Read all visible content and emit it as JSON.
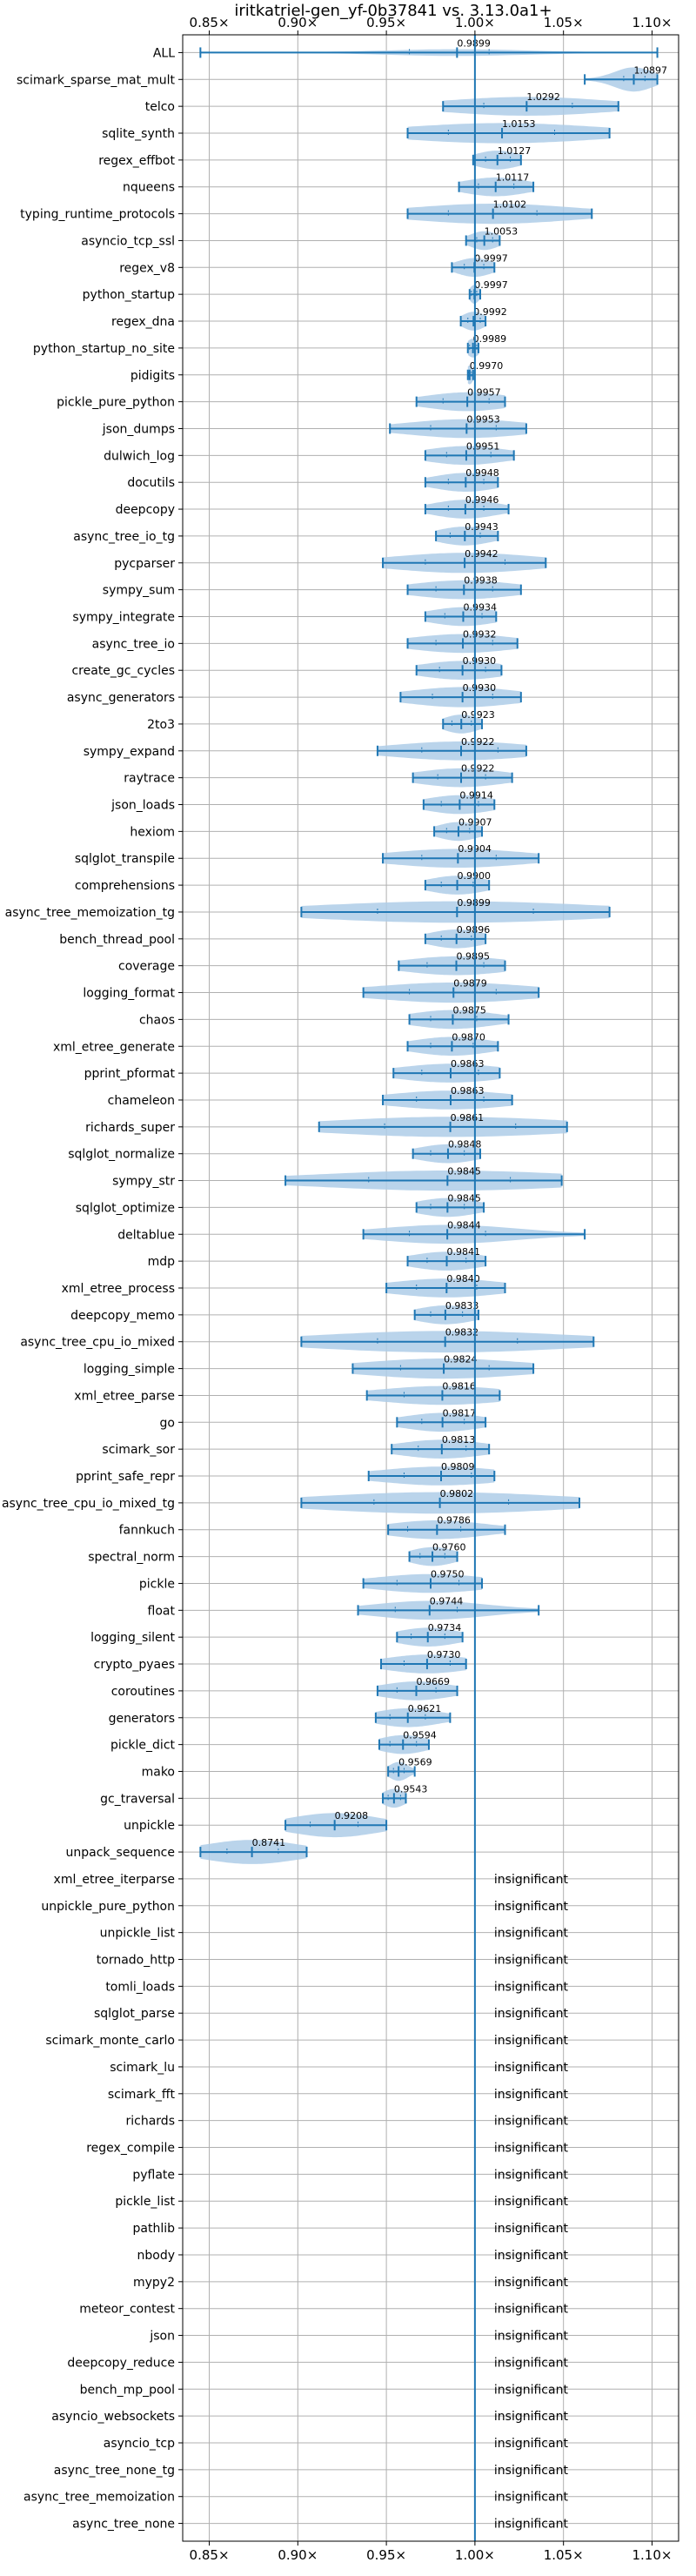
{
  "chart_data": {
    "type": "violin",
    "title": "iritkatriel-gen_yf-0b37841 vs. 3.13.0a1+",
    "xlim": [
      0.835,
      1.115
    ],
    "x_ticks": [
      0.85,
      0.9,
      0.95,
      1.0,
      1.05,
      1.1
    ],
    "x_tick_labels": [
      "0.85×",
      "0.90×",
      "0.95×",
      "1.00×",
      "1.05×",
      "1.10×"
    ],
    "reference_x": 1.0,
    "grid": true,
    "colors": {
      "violin": "#aecde8",
      "line": "#1f77b4",
      "grid": "#b0b0b0"
    },
    "insignificant_text": "insignificant",
    "benchmarks": [
      {
        "name": "ALL",
        "value": 0.9899,
        "label": "0.9899",
        "min": 0.845,
        "max": 1.103,
        "q1": 0.963,
        "q3": 1.008,
        "width": 0.25
      },
      {
        "name": "scimark_sparse_mat_mult",
        "value": 1.0897,
        "label": "1.0897",
        "min": 1.062,
        "max": 1.103,
        "q1": 1.084,
        "q3": 1.096,
        "width": 0.9
      },
      {
        "name": "telco",
        "value": 1.0292,
        "label": "1.0292",
        "min": 0.982,
        "max": 1.081,
        "q1": 1.005,
        "q3": 1.055,
        "width": 0.7
      },
      {
        "name": "sqlite_synth",
        "value": 1.0153,
        "label": "1.0153",
        "min": 0.962,
        "max": 1.076,
        "q1": 0.985,
        "q3": 1.045,
        "width": 0.75
      },
      {
        "name": "regex_effbot",
        "value": 1.0127,
        "label": "1.0127",
        "min": 0.999,
        "max": 1.026,
        "q1": 1.006,
        "q3": 1.02,
        "width": 0.7
      },
      {
        "name": "nqueens",
        "value": 1.0117,
        "label": "1.0117",
        "min": 0.991,
        "max": 1.033,
        "q1": 1.002,
        "q3": 1.022,
        "width": 0.7
      },
      {
        "name": "typing_runtime_protocols",
        "value": 1.0102,
        "label": "1.0102",
        "min": 0.962,
        "max": 1.066,
        "q1": 0.985,
        "q3": 1.035,
        "width": 0.75
      },
      {
        "name": "asyncio_tcp_ssl",
        "value": 1.0053,
        "label": "1.0053",
        "min": 0.995,
        "max": 1.014,
        "q1": 1.001,
        "q3": 1.01,
        "width": 0.7
      },
      {
        "name": "regex_v8",
        "value": 0.9997,
        "label": "0.9997",
        "min": 0.987,
        "max": 1.011,
        "q1": 0.994,
        "q3": 1.005,
        "width": 0.7
      },
      {
        "name": "python_startup",
        "value": 0.9997,
        "label": "0.9997",
        "min": 0.997,
        "max": 1.003,
        "q1": 0.998,
        "q3": 1.001,
        "width": 0.7
      },
      {
        "name": "regex_dna",
        "value": 0.9992,
        "label": "0.9992",
        "min": 0.992,
        "max": 1.006,
        "q1": 0.996,
        "q3": 1.003,
        "width": 0.7
      },
      {
        "name": "python_startup_no_site",
        "value": 0.9989,
        "label": "0.9989",
        "min": 0.996,
        "max": 1.002,
        "q1": 0.997,
        "q3": 1.001,
        "width": 0.7
      },
      {
        "name": "pidigits",
        "value": 0.997,
        "label": "0.9970",
        "min": 0.996,
        "max": 0.999,
        "q1": 0.9965,
        "q3": 0.998,
        "width": 0.7
      },
      {
        "name": "pickle_pure_python",
        "value": 0.9957,
        "label": "0.9957",
        "min": 0.967,
        "max": 1.017,
        "q1": 0.982,
        "q3": 1.008,
        "width": 0.7
      },
      {
        "name": "json_dumps",
        "value": 0.9953,
        "label": "0.9953",
        "min": 0.952,
        "max": 1.029,
        "q1": 0.975,
        "q3": 1.012,
        "width": 0.7
      },
      {
        "name": "dulwich_log",
        "value": 0.9951,
        "label": "0.9951",
        "min": 0.972,
        "max": 1.022,
        "q1": 0.984,
        "q3": 1.009,
        "width": 0.7
      },
      {
        "name": "docutils",
        "value": 0.9948,
        "label": "0.9948",
        "min": 0.972,
        "max": 1.013,
        "q1": 0.985,
        "q3": 1.005,
        "width": 0.7
      },
      {
        "name": "deepcopy",
        "value": 0.9946,
        "label": "0.9946",
        "min": 0.972,
        "max": 1.019,
        "q1": 0.985,
        "q3": 1.005,
        "width": 0.7
      },
      {
        "name": "async_tree_io_tg",
        "value": 0.9943,
        "label": "0.9943",
        "min": 0.978,
        "max": 1.013,
        "q1": 0.986,
        "q3": 1.003,
        "width": 0.7
      },
      {
        "name": "pycparser",
        "value": 0.9942,
        "label": "0.9942",
        "min": 0.948,
        "max": 1.04,
        "q1": 0.972,
        "q3": 1.017,
        "width": 0.75
      },
      {
        "name": "sympy_sum",
        "value": 0.9938,
        "label": "0.9938",
        "min": 0.962,
        "max": 1.026,
        "q1": 0.978,
        "q3": 1.01,
        "width": 0.7
      },
      {
        "name": "sympy_integrate",
        "value": 0.9934,
        "label": "0.9934",
        "min": 0.972,
        "max": 1.012,
        "q1": 0.983,
        "q3": 1.004,
        "width": 0.7
      },
      {
        "name": "async_tree_io",
        "value": 0.9932,
        "label": "0.9932",
        "min": 0.962,
        "max": 1.024,
        "q1": 0.978,
        "q3": 1.01,
        "width": 0.7
      },
      {
        "name": "create_gc_cycles",
        "value": 0.993,
        "label": "0.9930",
        "min": 0.967,
        "max": 1.015,
        "q1": 0.98,
        "q3": 1.006,
        "width": 0.7
      },
      {
        "name": "async_generators",
        "value": 0.993,
        "label": "0.9930",
        "min": 0.958,
        "max": 1.026,
        "q1": 0.976,
        "q3": 1.01,
        "width": 0.75
      },
      {
        "name": "2to3",
        "value": 0.9923,
        "label": "0.9923",
        "min": 0.982,
        "max": 1.004,
        "q1": 0.987,
        "q3": 0.998,
        "width": 0.7
      },
      {
        "name": "sympy_expand",
        "value": 0.9922,
        "label": "0.9922",
        "min": 0.945,
        "max": 1.029,
        "q1": 0.97,
        "q3": 1.013,
        "width": 0.7
      },
      {
        "name": "raytrace",
        "value": 0.9922,
        "label": "0.9922",
        "min": 0.965,
        "max": 1.021,
        "q1": 0.979,
        "q3": 1.006,
        "width": 0.7
      },
      {
        "name": "json_loads",
        "value": 0.9914,
        "label": "0.9914",
        "min": 0.971,
        "max": 1.011,
        "q1": 0.981,
        "q3": 1.002,
        "width": 0.7
      },
      {
        "name": "hexiom",
        "value": 0.9907,
        "label": "0.9907",
        "min": 0.977,
        "max": 1.004,
        "q1": 0.984,
        "q3": 0.997,
        "width": 0.7
      },
      {
        "name": "sqlglot_transpile",
        "value": 0.9904,
        "label": "0.9904",
        "min": 0.948,
        "max": 1.036,
        "q1": 0.97,
        "q3": 1.012,
        "width": 0.7
      },
      {
        "name": "comprehensions",
        "value": 0.99,
        "label": "0.9900",
        "min": 0.972,
        "max": 1.008,
        "q1": 0.981,
        "q3": 0.999,
        "width": 0.7
      },
      {
        "name": "async_tree_memoization_tg",
        "value": 0.9899,
        "label": "0.9899",
        "min": 0.902,
        "max": 1.076,
        "q1": 0.945,
        "q3": 1.033,
        "width": 0.8
      },
      {
        "name": "bench_thread_pool",
        "value": 0.9896,
        "label": "0.9896",
        "min": 0.972,
        "max": 1.006,
        "q1": 0.981,
        "q3": 0.998,
        "width": 0.7
      },
      {
        "name": "coverage",
        "value": 0.9895,
        "label": "0.9895",
        "min": 0.957,
        "max": 1.017,
        "q1": 0.973,
        "q3": 1.005,
        "width": 0.7
      },
      {
        "name": "logging_format",
        "value": 0.9879,
        "label": "0.9879",
        "min": 0.937,
        "max": 1.036,
        "q1": 0.963,
        "q3": 1.012,
        "width": 0.75
      },
      {
        "name": "chaos",
        "value": 0.9875,
        "label": "0.9875",
        "min": 0.963,
        "max": 1.019,
        "q1": 0.975,
        "q3": 1.001,
        "width": 0.7
      },
      {
        "name": "xml_etree_generate",
        "value": 0.987,
        "label": "0.9870",
        "min": 0.962,
        "max": 1.013,
        "q1": 0.975,
        "q3": 0.999,
        "width": 0.7
      },
      {
        "name": "pprint_pformat",
        "value": 0.9863,
        "label": "0.9863",
        "min": 0.954,
        "max": 1.014,
        "q1": 0.97,
        "q3": 1.002,
        "width": 0.7
      },
      {
        "name": "chameleon",
        "value": 0.9863,
        "label": "0.9863",
        "min": 0.948,
        "max": 1.021,
        "q1": 0.967,
        "q3": 1.005,
        "width": 0.7
      },
      {
        "name": "richards_super",
        "value": 0.9861,
        "label": "0.9861",
        "min": 0.912,
        "max": 1.052,
        "q1": 0.949,
        "q3": 1.023,
        "width": 0.75
      },
      {
        "name": "sqlglot_normalize",
        "value": 0.9848,
        "label": "0.9848",
        "min": 0.965,
        "max": 1.003,
        "q1": 0.975,
        "q3": 0.994,
        "width": 0.7
      },
      {
        "name": "sympy_str",
        "value": 0.9845,
        "label": "0.9845",
        "min": 0.893,
        "max": 1.049,
        "q1": 0.94,
        "q3": 1.02,
        "width": 0.75
      },
      {
        "name": "sqlglot_optimize",
        "value": 0.9845,
        "label": "0.9845",
        "min": 0.967,
        "max": 1.005,
        "q1": 0.975,
        "q3": 0.994,
        "width": 0.7
      },
      {
        "name": "deltablue",
        "value": 0.9844,
        "label": "0.9844",
        "min": 0.937,
        "max": 1.062,
        "q1": 0.963,
        "q3": 1.006,
        "width": 0.7
      },
      {
        "name": "mdp",
        "value": 0.9841,
        "label": "0.9841",
        "min": 0.962,
        "max": 1.006,
        "q1": 0.973,
        "q3": 0.995,
        "width": 0.7
      },
      {
        "name": "xml_etree_process",
        "value": 0.984,
        "label": "0.9840",
        "min": 0.95,
        "max": 1.017,
        "q1": 0.967,
        "q3": 1.001,
        "width": 0.7
      },
      {
        "name": "deepcopy_memo",
        "value": 0.9833,
        "label": "0.9833",
        "min": 0.966,
        "max": 1.002,
        "q1": 0.975,
        "q3": 0.993,
        "width": 0.7
      },
      {
        "name": "async_tree_cpu_io_mixed",
        "value": 0.9832,
        "label": "0.9832",
        "min": 0.902,
        "max": 1.067,
        "q1": 0.945,
        "q3": 1.024,
        "width": 0.8
      },
      {
        "name": "logging_simple",
        "value": 0.9824,
        "label": "0.9824",
        "min": 0.931,
        "max": 1.033,
        "q1": 0.958,
        "q3": 1.008,
        "width": 0.75
      },
      {
        "name": "xml_etree_parse",
        "value": 0.9816,
        "label": "0.9816",
        "min": 0.939,
        "max": 1.014,
        "q1": 0.96,
        "q3": 1.0,
        "width": 0.7
      },
      {
        "name": "go",
        "value": 0.9817,
        "label": "0.9817",
        "min": 0.956,
        "max": 1.006,
        "q1": 0.97,
        "q3": 0.994,
        "width": 0.7
      },
      {
        "name": "scimark_sor",
        "value": 0.9813,
        "label": "0.9813",
        "min": 0.953,
        "max": 1.008,
        "q1": 0.968,
        "q3": 0.995,
        "width": 0.7
      },
      {
        "name": "pprint_safe_repr",
        "value": 0.9809,
        "label": "0.9809",
        "min": 0.94,
        "max": 1.011,
        "q1": 0.96,
        "q3": 0.998,
        "width": 0.7
      },
      {
        "name": "async_tree_cpu_io_mixed_tg",
        "value": 0.9802,
        "label": "0.9802",
        "min": 0.902,
        "max": 1.059,
        "q1": 0.943,
        "q3": 1.019,
        "width": 0.8
      },
      {
        "name": "fannkuch",
        "value": 0.9786,
        "label": "0.9786",
        "min": 0.951,
        "max": 1.017,
        "q1": 0.962,
        "q3": 0.992,
        "width": 0.7
      },
      {
        "name": "spectral_norm",
        "value": 0.976,
        "label": "0.9760",
        "min": 0.963,
        "max": 0.99,
        "q1": 0.969,
        "q3": 0.983,
        "width": 0.7
      },
      {
        "name": "pickle",
        "value": 0.975,
        "label": "0.9750",
        "min": 0.937,
        "max": 1.004,
        "q1": 0.956,
        "q3": 0.991,
        "width": 0.7
      },
      {
        "name": "float",
        "value": 0.9744,
        "label": "0.9744",
        "min": 0.934,
        "max": 1.036,
        "q1": 0.955,
        "q3": 0.99,
        "width": 0.7
      },
      {
        "name": "logging_silent",
        "value": 0.9734,
        "label": "0.9734",
        "min": 0.956,
        "max": 0.993,
        "q1": 0.964,
        "q3": 0.983,
        "width": 0.7
      },
      {
        "name": "crypto_pyaes",
        "value": 0.973,
        "label": "0.9730",
        "min": 0.947,
        "max": 0.995,
        "q1": 0.96,
        "q3": 0.986,
        "width": 0.7
      },
      {
        "name": "coroutines",
        "value": 0.9669,
        "label": "0.9669",
        "min": 0.945,
        "max": 0.99,
        "q1": 0.956,
        "q3": 0.978,
        "width": 0.7
      },
      {
        "name": "generators",
        "value": 0.9621,
        "label": "0.9621",
        "min": 0.944,
        "max": 0.986,
        "q1": 0.952,
        "q3": 0.972,
        "width": 0.7
      },
      {
        "name": "pickle_dict",
        "value": 0.9594,
        "label": "0.9594",
        "min": 0.946,
        "max": 0.974,
        "q1": 0.952,
        "q3": 0.967,
        "width": 0.7
      },
      {
        "name": "mako",
        "value": 0.9569,
        "label": "0.9569",
        "min": 0.951,
        "max": 0.966,
        "q1": 0.954,
        "q3": 0.96,
        "width": 0.7
      },
      {
        "name": "gc_traversal",
        "value": 0.9543,
        "label": "0.9543",
        "min": 0.948,
        "max": 0.961,
        "q1": 0.951,
        "q3": 0.958,
        "width": 0.7
      },
      {
        "name": "unpickle",
        "value": 0.9208,
        "label": "0.9208",
        "min": 0.893,
        "max": 0.95,
        "q1": 0.907,
        "q3": 0.934,
        "width": 0.9
      },
      {
        "name": "unpack_sequence",
        "value": 0.8741,
        "label": "0.8741",
        "min": 0.845,
        "max": 0.905,
        "q1": 0.86,
        "q3": 0.889,
        "width": 0.9
      },
      {
        "name": "xml_etree_iterparse",
        "insignificant": true
      },
      {
        "name": "unpickle_pure_python",
        "insignificant": true
      },
      {
        "name": "unpickle_list",
        "insignificant": true
      },
      {
        "name": "tornado_http",
        "insignificant": true
      },
      {
        "name": "tomli_loads",
        "insignificant": true
      },
      {
        "name": "sqlglot_parse",
        "insignificant": true
      },
      {
        "name": "scimark_monte_carlo",
        "insignificant": true
      },
      {
        "name": "scimark_lu",
        "insignificant": true
      },
      {
        "name": "scimark_fft",
        "insignificant": true
      },
      {
        "name": "richards",
        "insignificant": true
      },
      {
        "name": "regex_compile",
        "insignificant": true
      },
      {
        "name": "pyflate",
        "insignificant": true
      },
      {
        "name": "pickle_list",
        "insignificant": true
      },
      {
        "name": "pathlib",
        "insignificant": true
      },
      {
        "name": "nbody",
        "insignificant": true
      },
      {
        "name": "mypy2",
        "insignificant": true
      },
      {
        "name": "meteor_contest",
        "insignificant": true
      },
      {
        "name": "json",
        "insignificant": true
      },
      {
        "name": "deepcopy_reduce",
        "insignificant": true
      },
      {
        "name": "bench_mp_pool",
        "insignificant": true
      },
      {
        "name": "asyncio_websockets",
        "insignificant": true
      },
      {
        "name": "asyncio_tcp",
        "insignificant": true
      },
      {
        "name": "async_tree_none_tg",
        "insignificant": true
      },
      {
        "name": "async_tree_memoization",
        "insignificant": true
      },
      {
        "name": "async_tree_none",
        "insignificant": true
      }
    ]
  }
}
